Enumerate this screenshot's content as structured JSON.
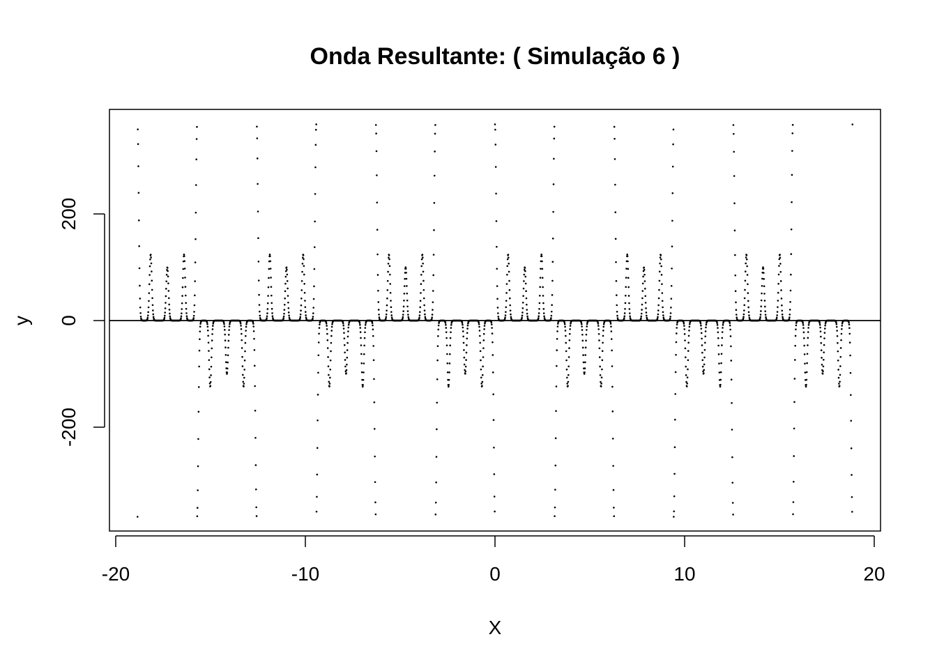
{
  "chart_data": {
    "type": "scatter",
    "title": "Onda Resultante: ( Simulação 6 )",
    "xlabel": "X",
    "ylabel": "y",
    "xlim": [
      -20,
      20
    ],
    "ylim": [
      -400,
      400
    ],
    "x_ticks": [
      "-20",
      "-10",
      "0",
      "10",
      "20"
    ],
    "y_ticks": [
      "-200",
      "0",
      "200"
    ],
    "x_range_data": [
      -18.85,
      18.85
    ],
    "period": 6.2832,
    "peak_amplitude": 368,
    "inner_bump_amplitude": 124,
    "center_bump_amplitude": 100,
    "reference_line_y": 0,
    "point_color": "#000000",
    "grid": false,
    "legend": "none"
  }
}
